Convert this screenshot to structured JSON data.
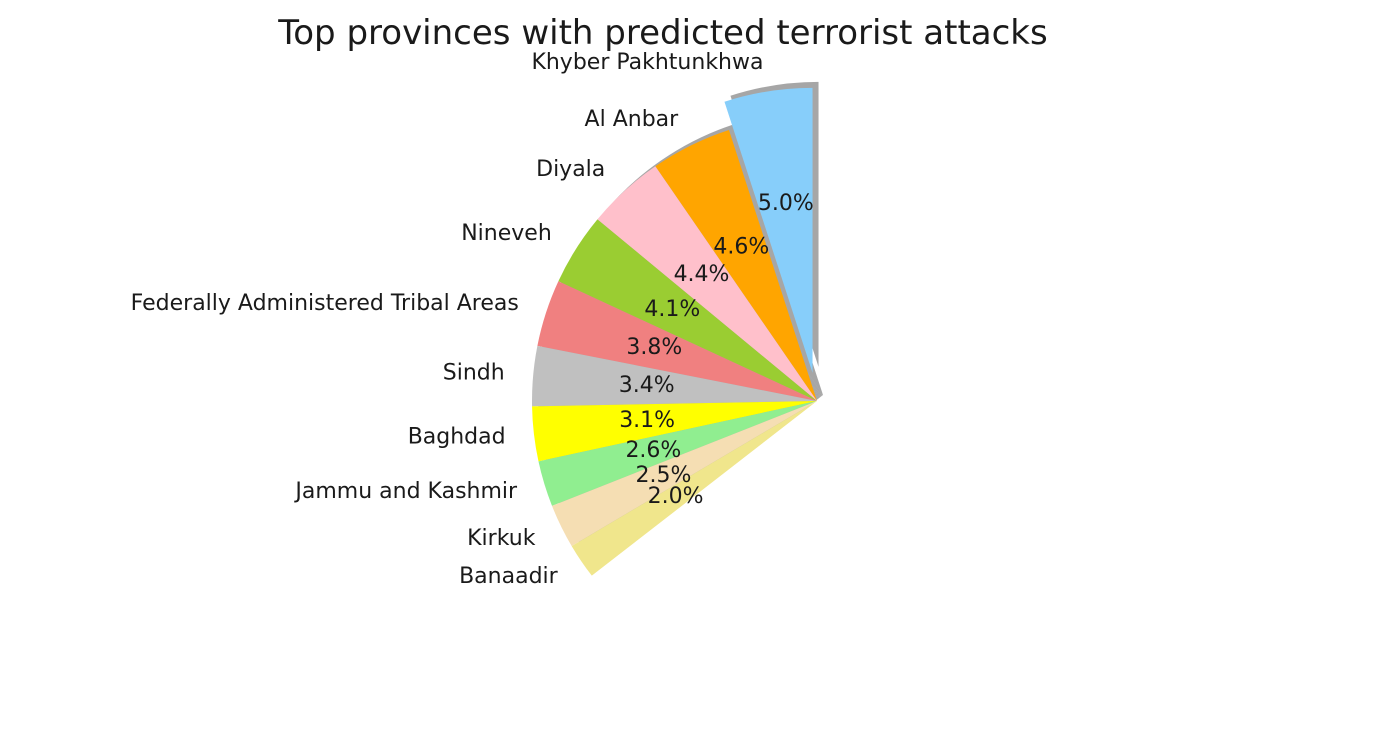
{
  "chart_data": {
    "type": "pie",
    "title": "Top provinces with predicted terrorist attacks",
    "autopct_format": "%.1f%%",
    "shadow": true,
    "exploded_slice": "Khyber Pakhtunkhwa",
    "slices": [
      {
        "label": "Khyber Pakhtunkhwa",
        "pct_label": "5.0%",
        "value": 5.0,
        "color": "#87CEFA"
      },
      {
        "label": "Al Anbar",
        "pct_label": "4.6%",
        "value": 4.6,
        "color": "#FFA500"
      },
      {
        "label": "Diyala",
        "pct_label": "4.4%",
        "value": 4.4,
        "color": "#FFC0CB"
      },
      {
        "label": "Nineveh",
        "pct_label": "4.1%",
        "value": 4.1,
        "color": "#9ACD32"
      },
      {
        "label": "Federally Administered Tribal Areas",
        "pct_label": "3.8%",
        "value": 3.8,
        "color": "#F08080"
      },
      {
        "label": "Sindh",
        "pct_label": "3.4%",
        "value": 3.4,
        "color": "#C0C0C0"
      },
      {
        "label": "Baghdad",
        "pct_label": "3.1%",
        "value": 3.1,
        "color": "#FFFF00"
      },
      {
        "label": "Jammu and Kashmir",
        "pct_label": "2.6%",
        "value": 2.6,
        "color": "#90EE90"
      },
      {
        "label": "Kirkuk",
        "pct_label": "2.5%",
        "value": 2.5,
        "color": "#F5DEB3"
      },
      {
        "label": "Banaadir",
        "pct_label": "2.0%",
        "value": 2.0,
        "color": "#F0E68C"
      }
    ]
  }
}
